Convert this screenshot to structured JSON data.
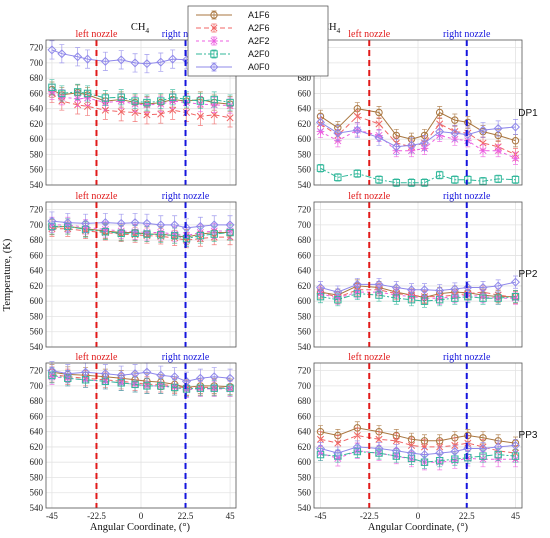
{
  "chart_data": {
    "type": "line",
    "legend": {
      "placement": "top-center",
      "entries": [
        "A1F6",
        "A2F6",
        "A2F2",
        "A2F0",
        "A0F0"
      ]
    },
    "xlabel": "Angular Coordinate, (°)",
    "ylabel": "Temperature, (K)",
    "xticks": [
      -45,
      -22.5,
      0,
      22.5,
      45
    ],
    "xtick_labels": [
      "-45",
      "-22.5",
      "0",
      "22.5",
      "45"
    ],
    "xlim": [
      -48,
      48
    ],
    "ylim": [
      540,
      730
    ],
    "yticks": [
      540,
      560,
      580,
      600,
      620,
      640,
      660,
      680,
      700,
      720
    ],
    "grid": true,
    "nozzles": [
      {
        "label": "left nozzle",
        "x": -22.5,
        "color": "#e11a1a"
      },
      {
        "label": "right nozzle",
        "x": 22.5,
        "color": "#1515dd"
      }
    ],
    "series_styles": [
      {
        "name": "A1F6",
        "color": "#a9763f",
        "marker": "circle",
        "dash": ""
      },
      {
        "name": "A2F6",
        "color": "#f06464",
        "marker": "x",
        "dash": "5,3"
      },
      {
        "name": "A2F2",
        "color": "#ec5fe0",
        "marker": "star",
        "dash": "3,3"
      },
      {
        "name": "A2F0",
        "color": "#30b79a",
        "marker": "square",
        "dash": "6,2,2,2"
      },
      {
        "name": "A0F0",
        "color": "#8f88ea",
        "marker": "diamond",
        "dash": ""
      }
    ],
    "columns": [
      "CH4",
      "H2/CH4"
    ],
    "rows": [
      "DP1",
      "PP2",
      "PP3"
    ],
    "panels": [
      {
        "id": "CH4-DP1",
        "col": 0,
        "row": 0,
        "x": [
          -45,
          -40,
          -32,
          -27,
          -18,
          -10,
          -3,
          3,
          10,
          16,
          23,
          30,
          37,
          45
        ],
        "series": [
          {
            "values": [
              665,
              658,
              661,
              658,
              650,
              652,
              648,
              646,
              648,
              652,
              650,
              652,
              648,
              646
            ],
            "err": 10
          },
          {
            "values": [
              660,
              650,
              645,
              643,
              638,
              636,
              635,
              632,
              633,
              638,
              635,
              630,
              632,
              628
            ],
            "err": 12
          },
          {
            "values": [
              662,
              655,
              653,
              654,
              648,
              650,
              646,
              645,
              646,
              650,
              648,
              646,
              645,
              644
            ],
            "err": 10
          },
          {
            "values": [
              668,
              660,
              662,
              660,
              654,
              655,
              650,
              648,
              650,
              655,
              652,
              650,
              652,
              648
            ],
            "err": 10
          },
          {
            "values": [
              717,
              712,
              708,
              705,
              702,
              704,
              700,
              699,
              701,
              705,
              704,
              705,
              707,
              706
            ],
            "err": 12
          }
        ]
      },
      {
        "id": "H2CH4-DP1",
        "col": 1,
        "row": 0,
        "x": [
          -45,
          -37,
          -28,
          -18,
          -10,
          -3,
          3,
          10,
          17,
          23,
          30,
          37,
          45
        ],
        "series": [
          {
            "values": [
              630,
              615,
              640,
              635,
              605,
              600,
              605,
              635,
              625,
              622,
              610,
              605,
              598
            ],
            "err": 8
          },
          {
            "values": [
              620,
              605,
              630,
              620,
              595,
              590,
              595,
              620,
              610,
              608,
              595,
              590,
              580
            ],
            "err": 8
          },
          {
            "values": [
              610,
              598,
              612,
              605,
              585,
              585,
              588,
              605,
              600,
              598,
              585,
              585,
              575
            ],
            "err": 8
          },
          {
            "values": [
              562,
              550,
              555,
              547,
              543,
              543,
              543,
              553,
              547,
              547,
              545,
              548,
              547
            ],
            "err": 5
          },
          {
            "values": [
              622,
              608,
              612,
              602,
              590,
              592,
              595,
              610,
              608,
              606,
              612,
              614,
              616
            ],
            "err": 10
          }
        ]
      },
      {
        "id": "CH4-PP2",
        "col": 0,
        "row": 1,
        "x": [
          -45,
          -37,
          -28,
          -18,
          -10,
          -3,
          3,
          10,
          17,
          23,
          30,
          37,
          45
        ],
        "series": [
          {
            "values": [
              697,
              698,
              695,
              692,
              690,
              690,
              688,
              688,
              686,
              684,
              688,
              690,
              690
            ],
            "err": 10
          },
          {
            "values": [
              695,
              695,
              692,
              690,
              688,
              687,
              686,
              685,
              683,
              680,
              682,
              684,
              684
            ],
            "err": 10
          },
          {
            "values": [
              700,
              700,
              697,
              694,
              692,
              691,
              690,
              690,
              688,
              686,
              690,
              692,
              692
            ],
            "err": 10
          },
          {
            "values": [
              698,
              698,
              694,
              691,
              689,
              689,
              688,
              687,
              686,
              682,
              686,
              688,
              690
            ],
            "err": 10
          },
          {
            "values": [
              705,
              703,
              702,
              703,
              702,
              703,
              702,
              700,
              700,
              696,
              698,
              700,
              700
            ],
            "err": 12
          }
        ]
      },
      {
        "id": "H2CH4-PP2",
        "col": 1,
        "row": 1,
        "x": [
          -45,
          -37,
          -28,
          -18,
          -10,
          -3,
          3,
          10,
          17,
          23,
          30,
          37,
          45
        ],
        "series": [
          {
            "values": [
              612,
              608,
              620,
              618,
              612,
              608,
              605,
              610,
              612,
              611,
              608,
              606,
              606
            ],
            "err": 8
          },
          {
            "values": [
              612,
              605,
              615,
              615,
              610,
              608,
              606,
              606,
              608,
              610,
              612,
              608,
              605
            ],
            "err": 8
          },
          {
            "values": [
              610,
              604,
              612,
              612,
              608,
              606,
              604,
              604,
              606,
              608,
              606,
              604,
              604
            ],
            "err": 8
          },
          {
            "values": [
              606,
              602,
              610,
              608,
              604,
              602,
              600,
              602,
              604,
              606,
              604,
              604,
              606
            ],
            "err": 8
          },
          {
            "values": [
              618,
              612,
              622,
              622,
              618,
              615,
              615,
              614,
              616,
              618,
              618,
              620,
              625
            ],
            "err": 8
          }
        ]
      },
      {
        "id": "CH4-PP3",
        "col": 0,
        "row": 2,
        "x": [
          -45,
          -37,
          -28,
          -18,
          -10,
          -3,
          3,
          10,
          17,
          23,
          30,
          37,
          45
        ],
        "series": [
          {
            "values": [
              718,
              715,
              714,
              712,
              710,
              708,
              706,
              705,
              702,
              698,
              700,
              700,
              699
            ],
            "err": 10
          },
          {
            "values": [
              715,
              712,
              710,
              708,
              706,
              704,
              702,
              702,
              700,
              697,
              698,
              698,
              697
            ],
            "err": 10
          },
          {
            "values": [
              712,
              710,
              708,
              706,
              704,
              702,
              700,
              700,
              698,
              695,
              696,
              696,
              696
            ],
            "err": 10
          },
          {
            "values": [
              714,
              710,
              708,
              706,
              704,
              702,
              700,
              700,
              698,
              696,
              697,
              697,
              697
            ],
            "err": 10
          },
          {
            "values": [
              720,
              716,
              718,
              716,
              714,
              716,
              718,
              714,
              712,
              706,
              710,
              712,
              710
            ],
            "err": 12
          }
        ]
      },
      {
        "id": "H2CH4-PP3",
        "col": 1,
        "row": 2,
        "x": [
          -45,
          -37,
          -28,
          -18,
          -10,
          -3,
          3,
          10,
          17,
          23,
          30,
          37,
          45
        ],
        "series": [
          {
            "values": [
              640,
              635,
              645,
              640,
              635,
              630,
              628,
              628,
              632,
              635,
              632,
              628,
              625
            ],
            "err": 8
          },
          {
            "values": [
              630,
              625,
              635,
              630,
              628,
              622,
              620,
              620,
              622,
              625,
              620,
              615,
              612
            ],
            "err": 10
          },
          {
            "values": [
              612,
              605,
              615,
              612,
              608,
              604,
              600,
              600,
              602,
              605,
              604,
              604,
              604
            ],
            "err": 10
          },
          {
            "values": [
              610,
              608,
              614,
              612,
              608,
              605,
              600,
              602,
              604,
              606,
              608,
              610,
              608
            ],
            "err": 8
          },
          {
            "values": [
              618,
              612,
              620,
              618,
              615,
              612,
              610,
              612,
              614,
              618,
              618,
              620,
              622
            ],
            "err": 8
          }
        ]
      }
    ]
  },
  "labels": {
    "col_ch4": "CH",
    "col_ch4_sub": "4",
    "col_h2_a": "H",
    "col_h2_sub": "2",
    "col_h2_b": "/CH",
    "col_h2_sub2": "4",
    "row_dp1": "DP1",
    "row_pp2": "PP2",
    "row_pp3": "PP3"
  }
}
